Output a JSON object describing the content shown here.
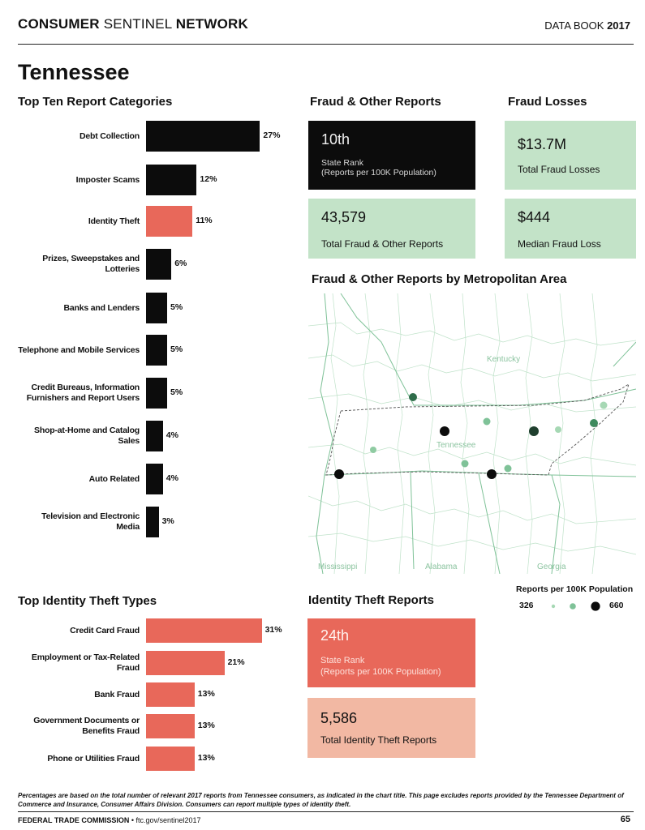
{
  "header": {
    "publication_a": "CONSUMER",
    "publication_b": "SENTINEL",
    "publication_c": "NETWORK",
    "databook_a": "DATA BOOK",
    "databook_b": "2017"
  },
  "state": "Tennessee",
  "top_ten": {
    "title": "Top Ten Report Categories",
    "items": [
      {
        "label": "Debt Collection",
        "value": "27%",
        "pct": 27
      },
      {
        "label": "Imposter Scams",
        "value": "12%",
        "pct": 12
      },
      {
        "label": "Identity Theft",
        "value": "11%",
        "pct": 11
      },
      {
        "label": "Prizes, Sweepstakes and Lotteries",
        "value": "6%",
        "pct": 6
      },
      {
        "label": "Banks and Lenders",
        "value": "5%",
        "pct": 5
      },
      {
        "label": "Telephone and Mobile Services",
        "value": "5%",
        "pct": 5
      },
      {
        "label": "Credit Bureaus, Information Furnishers and Report Users",
        "value": "5%",
        "pct": 5
      },
      {
        "label": "Shop-at-Home and Catalog Sales",
        "value": "4%",
        "pct": 4
      },
      {
        "label": "Auto Related",
        "value": "4%",
        "pct": 4
      },
      {
        "label": "Television and Electronic Media",
        "value": "3%",
        "pct": 3
      }
    ]
  },
  "fraud_reports": {
    "title": "Fraud & Other Reports",
    "rank": "10th",
    "rank_label_1": "State Rank",
    "rank_label_2": "(Reports per 100K Population)",
    "total": "43,579",
    "total_label": "Total Fraud & Other Reports"
  },
  "fraud_losses": {
    "title": "Fraud Losses",
    "total": "$13.7M",
    "total_label": "Total Fraud Losses",
    "median": "$444",
    "median_label": "Median Fraud Loss"
  },
  "map": {
    "title": "Fraud & Other Reports by Metropolitan Area",
    "labels": {
      "kentucky": "Kentucky",
      "tennessee": "Tennessee",
      "mississippi": "Mississippi",
      "alabama": "Alabama",
      "georgia": "Georgia"
    },
    "legend_title": "Reports per 100K Population",
    "legend_min": "326",
    "legend_max": "660"
  },
  "id_theft_types": {
    "title": "Top Identity Theft Types",
    "items": [
      {
        "label": "Credit Card Fraud",
        "value": "31%",
        "pct": 31
      },
      {
        "label": "Employment or Tax-Related Fraud",
        "value": "21%",
        "pct": 21
      },
      {
        "label": "Bank Fraud",
        "value": "13%",
        "pct": 13
      },
      {
        "label": "Government Documents or Benefits Fraud",
        "value": "13%",
        "pct": 13
      },
      {
        "label": "Phone or Utilities Fraud",
        "value": "13%",
        "pct": 13
      }
    ]
  },
  "id_theft_reports": {
    "title": "Identity Theft Reports",
    "rank": "24th",
    "rank_label_1": "State Rank",
    "rank_label_2": "(Reports per 100K Population)",
    "total": "5,586",
    "total_label": "Total Identity Theft Reports"
  },
  "footnote": "Percentages are based on the total number of relevant 2017 reports from Tennessee consumers, as indicated in the chart title. This page excludes reports provided by the Tennessee Department of Commerce and Insurance, Consumer Affairs Division. Consumers can report multiple types of identity theft.",
  "footer": {
    "org": "FEDERAL TRADE COMMISSION",
    "sep": " • ",
    "url": "ftc.gov/sentinel2017",
    "page": "65"
  },
  "colors": {
    "black": "#0c0c0c",
    "coral": "#e8685a",
    "salmon": "#f2b8a3",
    "mint": "#c3e3c8",
    "map_line": "#7fc298"
  }
}
